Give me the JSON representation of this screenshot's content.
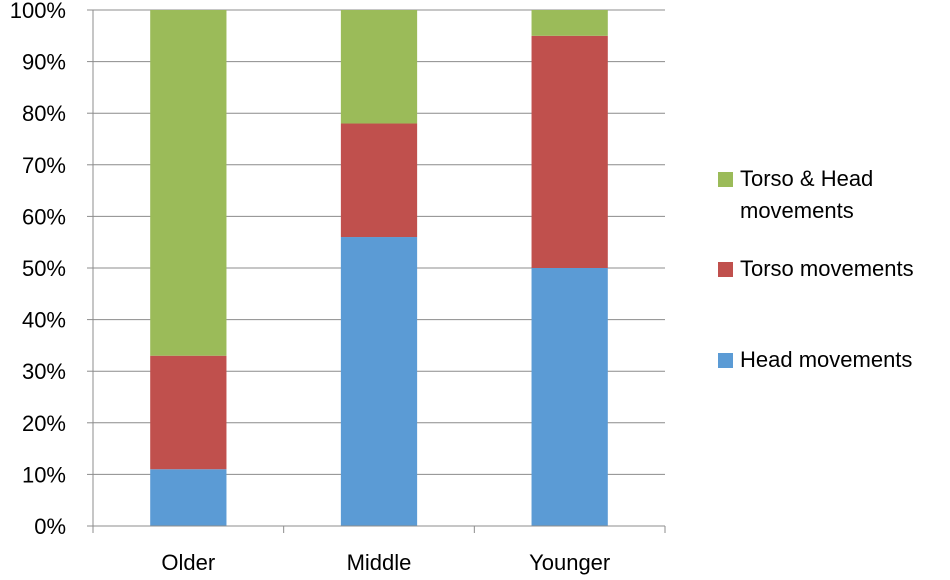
{
  "chart_data": {
    "type": "bar",
    "stacked": true,
    "categories": [
      "Older",
      "Middle",
      "Younger"
    ],
    "series": [
      {
        "name": "Head movements",
        "color": "#5b9bd5",
        "values": [
          11,
          56,
          50
        ]
      },
      {
        "name": "Torso movements",
        "color": "#c0504d",
        "values": [
          22,
          22,
          45
        ]
      },
      {
        "name": "Torso & Head movements",
        "color": "#9bbb59",
        "values": [
          67,
          22,
          5
        ]
      }
    ],
    "ylim": [
      0,
      100
    ],
    "yticks": [
      "0%",
      "10%",
      "20%",
      "30%",
      "40%",
      "50%",
      "60%",
      "70%",
      "80%",
      "90%",
      "100%"
    ],
    "grid": true,
    "legend": "right",
    "legend_order": [
      "Torso & Head movements",
      "Torso movements",
      "Head movements"
    ]
  }
}
